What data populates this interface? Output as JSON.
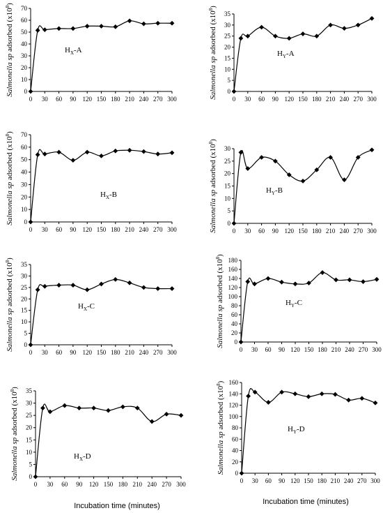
{
  "figure": {
    "xlabel": "Incubation time (minutes)",
    "ylabel_italic": "Salmonella sp",
    "ylabel_rest": " adsorbed (x10",
    "ylabel_exp": "8",
    "ylabel_close": ")"
  },
  "chart_data": [
    {
      "type": "line",
      "label_main": "H",
      "label_sub": "X",
      "label_suffix": "-A",
      "xlabel": "",
      "ylabel": "Salmonella sp adsorbed (x10^8)",
      "x": [
        0,
        15,
        30,
        60,
        90,
        120,
        150,
        180,
        210,
        240,
        270,
        300
      ],
      "xticks": [
        0,
        30,
        60,
        90,
        120,
        150,
        180,
        210,
        240,
        270,
        300
      ],
      "ylim": [
        0,
        70
      ],
      "yticks": [
        0,
        10,
        20,
        30,
        40,
        50,
        60,
        70
      ],
      "y": [
        0,
        51.5,
        52,
        53,
        53,
        55,
        55,
        54.5,
        59.5,
        57,
        57.5,
        57.5
      ]
    },
    {
      "type": "line",
      "label_main": "H",
      "label_sub": "Y",
      "label_suffix": "-A",
      "xlabel": "",
      "ylabel": "Salmonella sp adsorbed (x10^8)",
      "x": [
        0,
        15,
        30,
        60,
        90,
        120,
        150,
        180,
        210,
        240,
        270,
        300
      ],
      "xticks": [
        0,
        30,
        60,
        90,
        120,
        150,
        180,
        210,
        240,
        270,
        300
      ],
      "ylim": [
        0,
        35
      ],
      "yticks": [
        0,
        5,
        10,
        15,
        20,
        25,
        30,
        35
      ],
      "y": [
        0,
        24,
        25,
        29,
        25,
        24,
        26,
        25,
        30,
        28.5,
        30,
        33
      ]
    },
    {
      "type": "line",
      "label_main": "H",
      "label_sub": "X",
      "label_suffix": "-B",
      "xlabel": "",
      "ylabel": "Salmonella sp adsorbed (x10^8)",
      "x": [
        0,
        15,
        30,
        60,
        90,
        120,
        150,
        180,
        210,
        240,
        270,
        300
      ],
      "xticks": [
        0,
        30,
        60,
        90,
        120,
        150,
        180,
        210,
        240,
        270,
        300
      ],
      "ylim": [
        0,
        70
      ],
      "yticks": [
        0,
        10,
        20,
        30,
        40,
        50,
        60,
        70
      ],
      "y": [
        0,
        54,
        54.5,
        56,
        49.5,
        56,
        53,
        57,
        57.5,
        56.5,
        54.5,
        55.5
      ]
    },
    {
      "type": "line",
      "label_main": "H",
      "label_sub": "Y",
      "label_suffix": "-B",
      "xlabel": "",
      "ylabel": "Salmonella sp adsorbed (x10^8)",
      "x": [
        0,
        15,
        30,
        60,
        90,
        120,
        150,
        180,
        210,
        240,
        270,
        300
      ],
      "xticks": [
        0,
        30,
        60,
        90,
        120,
        150,
        180,
        210,
        240,
        270,
        300
      ],
      "ylim": [
        0,
        30
      ],
      "yticks": [
        0,
        5,
        10,
        15,
        20,
        25,
        30
      ],
      "y": [
        0,
        28.5,
        22,
        26.5,
        25,
        19.5,
        17,
        21.5,
        26.5,
        17.5,
        26.5,
        29.5
      ]
    },
    {
      "type": "line",
      "label_main": "H",
      "label_sub": "X",
      "label_suffix": "-C",
      "xlabel": "",
      "ylabel": "Salmonella sp adsorbed (x10^8)",
      "x": [
        0,
        15,
        30,
        60,
        90,
        120,
        150,
        180,
        210,
        240,
        270,
        300
      ],
      "xticks": [
        0,
        30,
        60,
        90,
        120,
        150,
        180,
        210,
        240,
        270,
        300
      ],
      "ylim": [
        0,
        35
      ],
      "yticks": [
        0,
        5,
        10,
        15,
        20,
        25,
        30,
        35
      ],
      "y": [
        0,
        24,
        25.5,
        26,
        26,
        24,
        26.5,
        28.5,
        27,
        25,
        24.5,
        24.5
      ]
    },
    {
      "type": "line",
      "label_main": "H",
      "label_sub": "Y",
      "label_suffix": "-C",
      "xlabel": "",
      "ylabel": "Salmonella sp adsorbed (x10^8)",
      "x": [
        0,
        15,
        30,
        60,
        90,
        120,
        150,
        180,
        210,
        240,
        270,
        300
      ],
      "xticks": [
        0,
        30,
        60,
        90,
        120,
        150,
        180,
        210,
        240,
        270,
        300
      ],
      "ylim": [
        0,
        180
      ],
      "yticks": [
        0,
        20,
        40,
        60,
        80,
        100,
        120,
        140,
        160,
        180
      ],
      "y": [
        0,
        133,
        128,
        140,
        132,
        128,
        130,
        153,
        137,
        137,
        133,
        138
      ]
    },
    {
      "type": "line",
      "label_main": "H",
      "label_sub": "X",
      "label_suffix": "-D",
      "xlabel": "Incubation time (minutes)",
      "ylabel": "Salmonella sp adsorbed (x10^8)",
      "x": [
        0,
        15,
        30,
        60,
        90,
        120,
        150,
        180,
        210,
        240,
        270,
        300
      ],
      "xticks": [
        0,
        30,
        60,
        90,
        120,
        150,
        180,
        210,
        240,
        270,
        300
      ],
      "ylim": [
        0,
        35
      ],
      "yticks": [
        0,
        5,
        10,
        15,
        20,
        25,
        30,
        35
      ],
      "y": [
        0,
        28,
        26.5,
        29,
        28,
        28,
        27,
        28.5,
        28,
        22.5,
        25.5,
        25
      ]
    },
    {
      "type": "line",
      "label_main": "H",
      "label_sub": "Y",
      "label_suffix": "-D",
      "xlabel": "Incubation time (minutes)",
      "ylabel": "Salmonella sp adsorbed (x10^8)",
      "x": [
        0,
        15,
        30,
        60,
        90,
        120,
        150,
        180,
        210,
        240,
        270,
        300
      ],
      "xticks": [
        0,
        30,
        60,
        90,
        120,
        150,
        180,
        210,
        240,
        270,
        300
      ],
      "ylim": [
        0,
        160
      ],
      "yticks": [
        0,
        20,
        40,
        60,
        80,
        100,
        120,
        140,
        160
      ],
      "y": [
        0,
        136,
        143,
        125,
        143,
        140,
        135,
        140,
        139,
        129,
        132,
        124
      ]
    }
  ]
}
